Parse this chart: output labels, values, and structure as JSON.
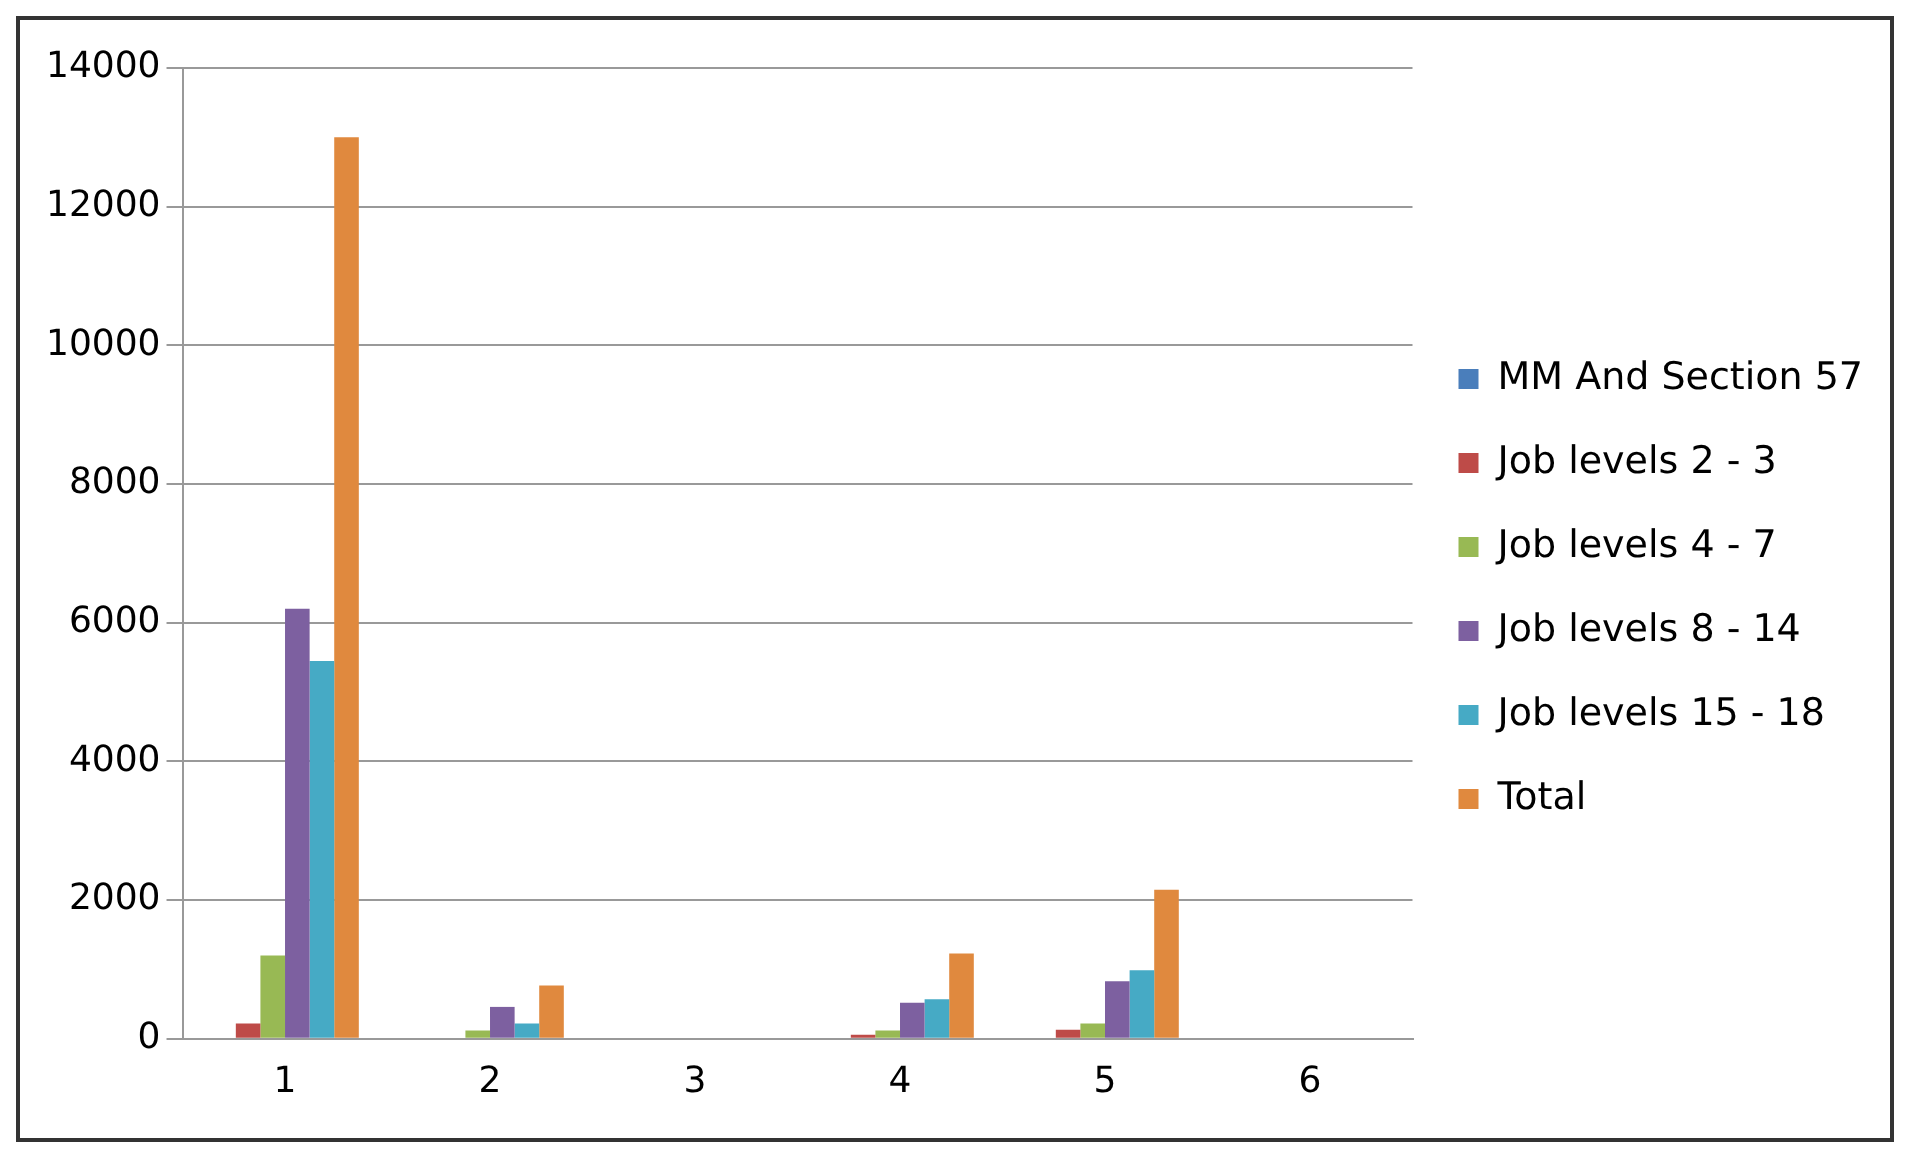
{
  "chart_data": {
    "type": "bar",
    "categories": [
      "1",
      "2",
      "3",
      "4",
      "5",
      "6"
    ],
    "series": [
      {
        "name": "MM And Section 57",
        "color": "#4a7ebb",
        "values": [
          0,
          0,
          0,
          0,
          0,
          0
        ]
      },
      {
        "name": "Job levels 2 - 3",
        "color": "#be4b48",
        "values": [
          220,
          0,
          0,
          60,
          130,
          0
        ]
      },
      {
        "name": "Job levels 4 - 7",
        "color": "#98b954",
        "values": [
          1200,
          120,
          0,
          120,
          220,
          0
        ]
      },
      {
        "name": "Job levels 8 - 14",
        "color": "#7d60a0",
        "values": [
          6200,
          460,
          0,
          520,
          830,
          0
        ]
      },
      {
        "name": "Job levels 15 - 18",
        "color": "#46aac5",
        "values": [
          5450,
          220,
          0,
          570,
          990,
          0
        ]
      },
      {
        "name": "Total",
        "color": "#e0893e",
        "values": [
          13000,
          770,
          0,
          1230,
          2150,
          0
        ]
      }
    ],
    "ylim": [
      0,
      14000
    ],
    "yticks": [
      0,
      2000,
      4000,
      6000,
      8000,
      10000,
      12000,
      14000
    ],
    "grid": "y",
    "legend": "right"
  }
}
